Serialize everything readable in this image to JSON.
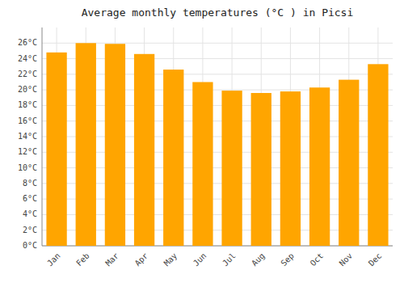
{
  "chart_data": {
    "type": "bar",
    "title": "Average monthly temperatures (°C ) in Picsi",
    "categories": [
      "Jan",
      "Feb",
      "Mar",
      "Apr",
      "May",
      "Jun",
      "Jul",
      "Aug",
      "Sep",
      "Oct",
      "Nov",
      "Dec"
    ],
    "values": [
      24.8,
      26.0,
      25.9,
      24.6,
      22.6,
      21.0,
      19.9,
      19.6,
      19.8,
      20.3,
      21.3,
      23.3
    ],
    "color": "#FFA500",
    "ylim": [
      0,
      28
    ],
    "yticks": [
      {
        "value": 0,
        "label": "0°C"
      },
      {
        "value": 2,
        "label": "2°C"
      },
      {
        "value": 4,
        "label": "4°C"
      },
      {
        "value": 6,
        "label": "6°C"
      },
      {
        "value": 8,
        "label": "8°C"
      },
      {
        "value": 10,
        "label": "10°C"
      },
      {
        "value": 12,
        "label": "12°C"
      },
      {
        "value": 14,
        "label": "14°C"
      },
      {
        "value": 16,
        "label": "16°C"
      },
      {
        "value": 18,
        "label": "18°C"
      },
      {
        "value": 20,
        "label": "20°C"
      },
      {
        "value": 22,
        "label": "22°C"
      },
      {
        "value": 24,
        "label": "24°C"
      },
      {
        "value": 26,
        "label": "26°C"
      }
    ],
    "grid": true
  }
}
